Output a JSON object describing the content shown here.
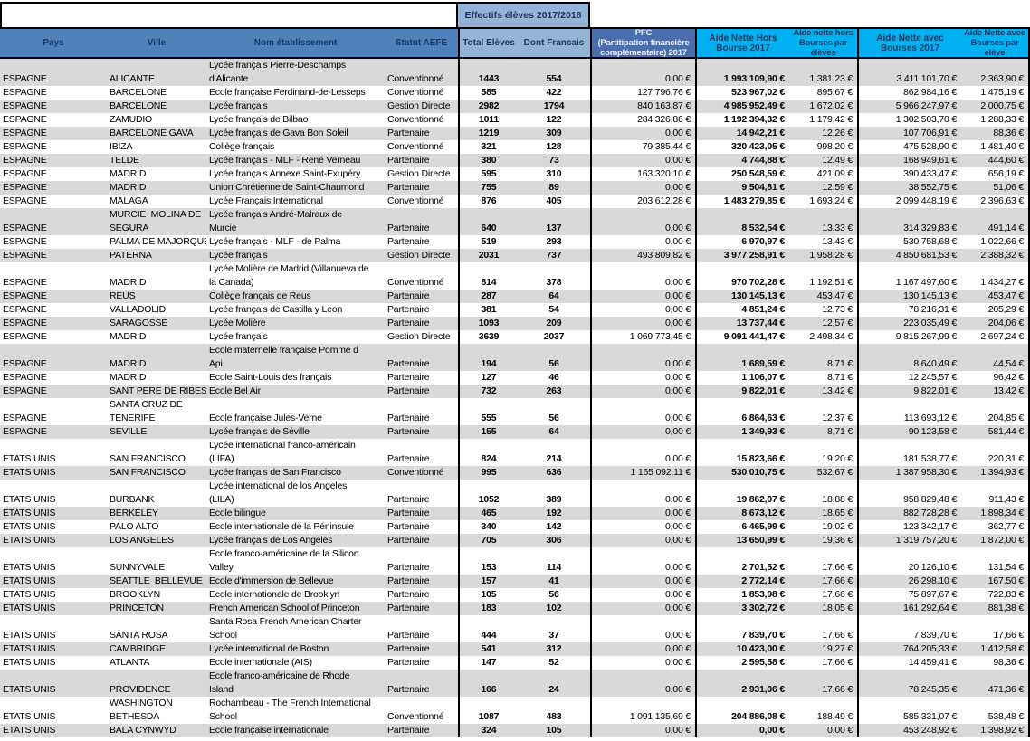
{
  "title_strip": {
    "effectifs_label": "Effectifs élèves 2017/2018"
  },
  "header": {
    "columns": [
      "Pays",
      "Ville",
      "Nom établissement",
      "Statut AEFE",
      "Total Elèves",
      "Dont Francais",
      "PFC\n(Partitipation financière\ncomplémentaire) 2017",
      "Aide Nette Hors\nBourse 2017",
      "Aide nette hors\nBourses par\nélèves",
      "Aide Nette avec\nBourses 2017",
      "Aide Nette avec\nBourses par\nélève"
    ]
  },
  "colors": {
    "header_band": "#4F81BD",
    "header_light_blue": "#95B3D7",
    "header_pfc": "#4A6DAD",
    "header_cyan": "#00B0F0",
    "row_stripe_gray": "#D9D9D9",
    "header_text_navy": "#17375E"
  },
  "table": {
    "rows": [
      [
        "ESPAGNE",
        "ALICANTE",
        "Lycée français Pierre-Deschamps\nd'Alicante",
        "Conventionné",
        "1443",
        "554",
        "0,00 €",
        "1 993 109,90 €",
        "1 381,23 €",
        "3 411 101,70 €",
        "2 363,90 €"
      ],
      [
        "ESPAGNE",
        "BARCELONE",
        "Ecole française Ferdinand-de-Lesseps",
        "Conventionné",
        "585",
        "422",
        "127 796,76 €",
        "523 967,02 €",
        "895,67 €",
        "862 984,16 €",
        "1 475,19 €"
      ],
      [
        "ESPAGNE",
        "BARCELONE",
        "Lycée français",
        "Gestion Directe",
        "2982",
        "1794",
        "840 163,87 €",
        "4 985 952,49 €",
        "1 672,02 €",
        "5 966 247,97 €",
        "2 000,75 €"
      ],
      [
        "ESPAGNE",
        "ZAMUDIO",
        "Lycée français de Bilbao",
        "Conventionné",
        "1011",
        "122",
        "284 326,86 €",
        "1 192 394,32 €",
        "1 179,42 €",
        "1 302 503,70 €",
        "1 288,33 €"
      ],
      [
        "ESPAGNE",
        "BARCELONE GAVA",
        "Lycée français de Gava Bon Soleil",
        "Partenaire",
        "1219",
        "309",
        "0,00 €",
        "14 942,21 €",
        "12,26 €",
        "107 706,91 €",
        "88,36 €"
      ],
      [
        "ESPAGNE",
        "IBIZA",
        "Collège français",
        "Conventionné",
        "321",
        "128",
        "79 385,44 €",
        "320 423,05 €",
        "998,20 €",
        "475 528,90 €",
        "1 481,40 €"
      ],
      [
        "ESPAGNE",
        "TELDE",
        "Lycée français - MLF - René Verneau",
        "Partenaire",
        "380",
        "73",
        "0,00 €",
        "4 744,88 €",
        "12,49 €",
        "168 949,61 €",
        "444,60 €"
      ],
      [
        "ESPAGNE",
        "MADRID",
        "Lycée français Annexe Saint-Exupéry",
        "Gestion Directe",
        "595",
        "310",
        "163 320,10 €",
        "250 548,59 €",
        "421,09 €",
        "390 433,47 €",
        "656,19 €"
      ],
      [
        "ESPAGNE",
        "MADRID",
        "Union Chrétienne de Saint-Chaumond",
        "Partenaire",
        "755",
        "89",
        "0,00 €",
        "9 504,81 €",
        "12,59 €",
        "38 552,75 €",
        "51,06 €"
      ],
      [
        "ESPAGNE",
        "MALAGA",
        "Lycée Français International",
        "Conventionné",
        "876",
        "405",
        "203 612,28 €",
        "1 483 279,85 €",
        "1 693,24 €",
        "2 099 448,19 €",
        "2 396,63 €"
      ],
      [
        "ESPAGNE",
        "MURCIE  MOLINA DE\nSEGURA",
        "Lycée français André-Malraux de\nMurcie",
        "Partenaire",
        "640",
        "137",
        "0,00 €",
        "8 532,54 €",
        "13,33 €",
        "314 329,83 €",
        "491,14 €"
      ],
      [
        "ESPAGNE",
        "PALMA DE MAJORQUE",
        "Lycée français - MLF - de Palma",
        "Partenaire",
        "519",
        "293",
        "0,00 €",
        "6 970,97 €",
        "13,43 €",
        "530 758,68 €",
        "1 022,66 €"
      ],
      [
        "ESPAGNE",
        "PATERNA",
        "Lycée français",
        "Gestion Directe",
        "2031",
        "737",
        "493 809,82 €",
        "3 977 258,91 €",
        "1 958,28 €",
        "4 850 681,53 €",
        "2 388,32 €"
      ],
      [
        "ESPAGNE",
        "MADRID",
        "Lycée Molière de Madrid (Villanueva de\nla Canada)",
        "Conventionné",
        "814",
        "378",
        "0,00 €",
        "970 702,28 €",
        "1 192,51 €",
        "1 167 497,60 €",
        "1 434,27 €"
      ],
      [
        "ESPAGNE",
        "REUS",
        "Collège français de Reus",
        "Partenaire",
        "287",
        "64",
        "0,00 €",
        "130 145,13 €",
        "453,47 €",
        "130 145,13 €",
        "453,47 €"
      ],
      [
        "ESPAGNE",
        "VALLADOLID",
        "Lycée français de Castilla y Leon",
        "Partenaire",
        "381",
        "54",
        "0,00 €",
        "4 851,24 €",
        "12,73 €",
        "78 216,31 €",
        "205,29 €"
      ],
      [
        "ESPAGNE",
        "SARAGOSSE",
        "Lycée Molière",
        "Partenaire",
        "1093",
        "209",
        "0,00 €",
        "13 737,44 €",
        "12,57 €",
        "223 035,49 €",
        "204,06 €"
      ],
      [
        "ESPAGNE",
        "MADRID",
        "Lycée français",
        "Gestion Directe",
        "3639",
        "2037",
        "1 069 773,45 €",
        "9 091 441,47 €",
        "2 498,34 €",
        "9 815 267,99 €",
        "2 697,24 €"
      ],
      [
        "ESPAGNE",
        "MADRID",
        "Ecole maternelle française Pomme d\nApi",
        "Partenaire",
        "194",
        "56",
        "0,00 €",
        "1 689,59 €",
        "8,71 €",
        "8 640,49 €",
        "44,54 €"
      ],
      [
        "ESPAGNE",
        "MADRID",
        "Ecole Saint-Louis des français",
        "Partenaire",
        "127",
        "46",
        "0,00 €",
        "1 106,07 €",
        "8,71 €",
        "12 245,57 €",
        "96,42 €"
      ],
      [
        "ESPAGNE",
        "SANT PERE DE RIBES",
        "Ecole Bel Air",
        "Partenaire",
        "732",
        "263",
        "0,00 €",
        "9 822,01 €",
        "13,42 €",
        "9 822,01 €",
        "13,42 €"
      ],
      [
        "ESPAGNE",
        "SANTA CRUZ DE\nTENERIFE",
        "Ecole française Jules-Verne",
        "Partenaire",
        "555",
        "56",
        "0,00 €",
        "6 864,63 €",
        "12,37 €",
        "113 693,12 €",
        "204,85 €"
      ],
      [
        "ESPAGNE",
        "SEVILLE",
        "Lycée français de Séville",
        "Partenaire",
        "155",
        "64",
        "0,00 €",
        "1 349,93 €",
        "8,71 €",
        "90 123,58 €",
        "581,44 €"
      ],
      [
        "ETATS UNIS",
        "SAN FRANCISCO",
        "Lycée international franco-américain\n(LIFA)",
        "Partenaire",
        "824",
        "214",
        "0,00 €",
        "15 823,66 €",
        "19,20 €",
        "181 538,77 €",
        "220,31 €"
      ],
      [
        "ETATS UNIS",
        "SAN FRANCISCO",
        "Lycée français de San Francisco",
        "Conventionné",
        "995",
        "636",
        "1 165 092,11 €",
        "530 010,75 €",
        "532,67 €",
        "1 387 958,30 €",
        "1 394,93 €"
      ],
      [
        "ETATS UNIS",
        "BURBANK",
        "Lycée international de los Angeles\n(LILA)",
        "Partenaire",
        "1052",
        "389",
        "0,00 €",
        "19 862,07 €",
        "18,88 €",
        "958 829,48 €",
        "911,43 €"
      ],
      [
        "ETATS UNIS",
        "BERKELEY",
        "Ecole bilingue",
        "Partenaire",
        "465",
        "192",
        "0,00 €",
        "8 673,12 €",
        "18,65 €",
        "882 728,28 €",
        "1 898,34 €"
      ],
      [
        "ETATS UNIS",
        "PALO ALTO",
        "Ecole internationale de la Péninsule",
        "Partenaire",
        "340",
        "142",
        "0,00 €",
        "6 465,99 €",
        "19,02 €",
        "123 342,17 €",
        "362,77 €"
      ],
      [
        "ETATS UNIS",
        "LOS ANGELES",
        "Lycée français de Los Angeles",
        "Partenaire",
        "705",
        "306",
        "0,00 €",
        "13 650,99 €",
        "19,36 €",
        "1 319 757,20 €",
        "1 872,00 €"
      ],
      [
        "ETATS UNIS",
        "SUNNYVALE",
        "Ecole franco-américaine de la Silicon\nValley",
        "Partenaire",
        "153",
        "114",
        "0,00 €",
        "2 701,52 €",
        "17,66 €",
        "20 126,10 €",
        "131,54 €"
      ],
      [
        "ETATS UNIS",
        "SEATTLE  BELLEVUE",
        "Ecole d'immersion de Bellevue",
        "Partenaire",
        "157",
        "41",
        "0,00 €",
        "2 772,14 €",
        "17,66 €",
        "26 298,10 €",
        "167,50 €"
      ],
      [
        "ETATS UNIS",
        "BROOKLYN",
        "Ecole internationale de Brooklyn",
        "Partenaire",
        "105",
        "56",
        "0,00 €",
        "1 853,98 €",
        "17,66 €",
        "75 897,67 €",
        "722,83 €"
      ],
      [
        "ETATS UNIS",
        "PRINCETON",
        "French American School of Princeton",
        "Partenaire",
        "183",
        "102",
        "0,00 €",
        "3 302,72 €",
        "18,05 €",
        "161 292,64 €",
        "881,38 €"
      ],
      [
        "ETATS UNIS",
        "SANTA ROSA",
        "Santa Rosa French American Charter\nSchool",
        "Partenaire",
        "444",
        "37",
        "0,00 €",
        "7 839,70 €",
        "17,66 €",
        "7 839,70 €",
        "17,66 €"
      ],
      [
        "ETATS UNIS",
        "CAMBRIDGE",
        "Lycée international de Boston",
        "Partenaire",
        "541",
        "312",
        "0,00 €",
        "10 423,00 €",
        "19,27 €",
        "764 205,33 €",
        "1 412,58 €"
      ],
      [
        "ETATS UNIS",
        "ATLANTA",
        "Ecole internationale (AIS)",
        "Partenaire",
        "147",
        "52",
        "0,00 €",
        "2 595,58 €",
        "17,66 €",
        "14 459,41 €",
        "98,36 €"
      ],
      [
        "ETATS UNIS",
        "PROVIDENCE",
        "Ecole franco-américaine de Rhode\nIsland",
        "Partenaire",
        "166",
        "24",
        "0,00 €",
        "2 931,06 €",
        "17,66 €",
        "78 245,35 €",
        "471,36 €"
      ],
      [
        "ETATS UNIS",
        "WASHINGTON\nBETHESDA",
        "Rochambeau - The French International\nSchool",
        "Conventionné",
        "1087",
        "483",
        "1 091 135,69 €",
        "204 886,08 €",
        "188,49 €",
        "585 331,07 €",
        "538,48 €"
      ],
      [
        "ETATS UNIS",
        "BALA CYNWYD",
        "Ecole française internationale",
        "Partenaire",
        "324",
        "105",
        "0,00 €",
        "0,00 €",
        "0,00 €",
        "453 248,92 €",
        "1 398,92 €"
      ]
    ]
  }
}
